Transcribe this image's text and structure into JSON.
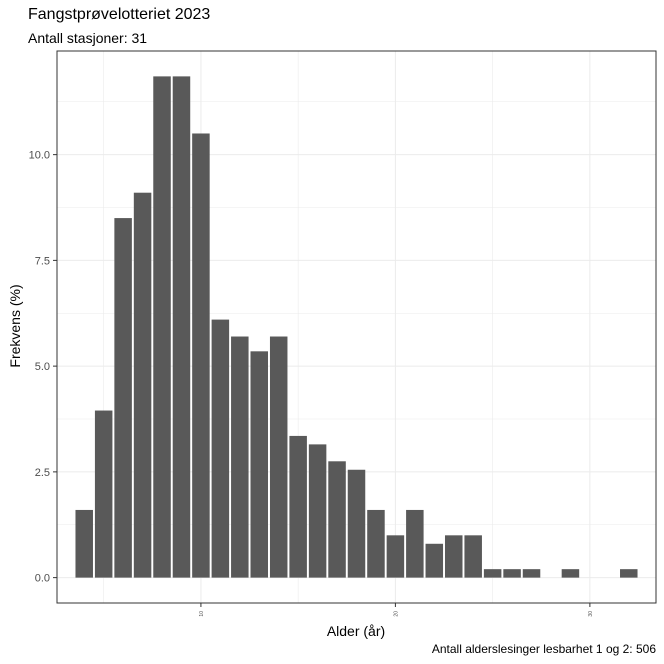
{
  "title": "Fangstprøvelotteriet 2023",
  "subtitle": "Antall stasjoner:  31",
  "caption": "Antall alderslesinger lesbarhet 1 og 2: 506",
  "chart_data": {
    "type": "bar",
    "title": "Fangstprøvelotteriet 2023",
    "subtitle": "Antall stasjoner:  31",
    "xlabel": "Alder (år)",
    "ylabel": "Frekvens (%)",
    "x": [
      4,
      5,
      6,
      7,
      8,
      9,
      10,
      11,
      12,
      13,
      14,
      15,
      16,
      17,
      18,
      19,
      20,
      21,
      22,
      23,
      24,
      25,
      26,
      27,
      29,
      32
    ],
    "values": [
      1.6,
      3.95,
      8.5,
      9.1,
      11.85,
      11.85,
      10.5,
      6.1,
      5.7,
      5.35,
      5.7,
      3.35,
      3.15,
      2.75,
      2.55,
      1.6,
      1.0,
      1.6,
      0.8,
      1.0,
      1.0,
      0.2,
      0.2,
      0.2,
      0.2,
      0.2
    ],
    "xlim": [
      2.6,
      33.4
    ],
    "ylim": [
      -0.6,
      12.45
    ],
    "xticks": [
      10,
      20,
      30
    ],
    "xtick_labels": [
      "10",
      "20",
      "30"
    ],
    "yticks": [
      0,
      2.5,
      5,
      7.5,
      10
    ],
    "ytick_labels": [
      "0.0",
      "2.5",
      "5.0",
      "7.5",
      "10.0"
    ],
    "bar_color": "#595959",
    "grid": true,
    "panel_border_color": "#333333",
    "grid_color": "#ebebeb"
  }
}
